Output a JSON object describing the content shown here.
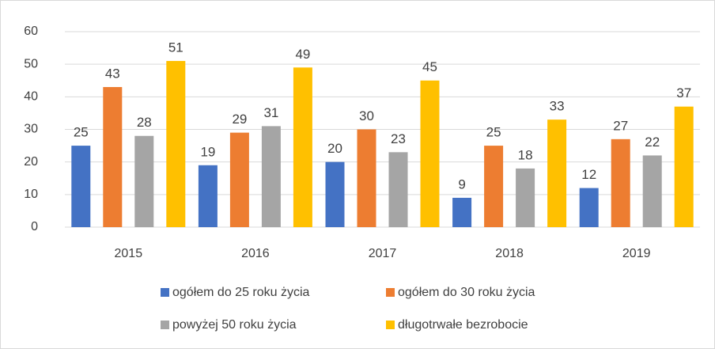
{
  "chart_data": {
    "type": "bar",
    "categories": [
      "2015",
      "2016",
      "2017",
      "2018",
      "2019"
    ],
    "series": [
      {
        "name": "ogółem do 25 roku życia",
        "color": "#4472c4",
        "values": [
          25,
          19,
          20,
          9,
          12
        ]
      },
      {
        "name": "ogółem do 30 roku życia",
        "color": "#ed7d31",
        "values": [
          43,
          29,
          30,
          25,
          27
        ]
      },
      {
        "name": "powyżej 50 roku życia",
        "color": "#a5a5a5",
        "values": [
          28,
          31,
          23,
          18,
          22
        ]
      },
      {
        "name": "długotrwałe bezrobocie",
        "color": "#ffc000",
        "values": [
          51,
          49,
          45,
          33,
          37
        ]
      }
    ],
    "ylim": [
      0,
      60
    ],
    "yticks": [
      0,
      10,
      20,
      30,
      40,
      50,
      60
    ],
    "grid": true,
    "legend": "bottom"
  }
}
